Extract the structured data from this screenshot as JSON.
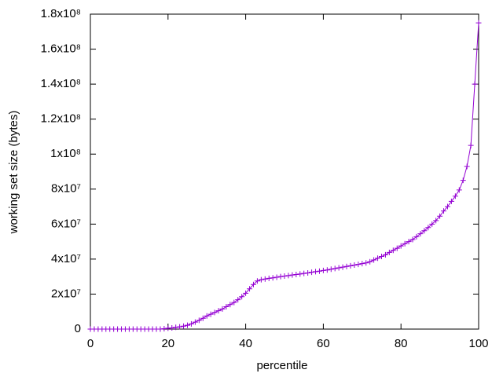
{
  "chart_data": {
    "type": "line",
    "xlabel": "percentile",
    "ylabel": "working set size (bytes)",
    "x": [
      0,
      1,
      2,
      3,
      4,
      5,
      6,
      7,
      8,
      9,
      10,
      11,
      12,
      13,
      14,
      15,
      16,
      17,
      18,
      19,
      20,
      21,
      22,
      23,
      24,
      25,
      26,
      27,
      28,
      29,
      30,
      31,
      32,
      33,
      34,
      35,
      36,
      37,
      38,
      39,
      40,
      41,
      42,
      43,
      44,
      45,
      46,
      47,
      48,
      49,
      50,
      51,
      52,
      53,
      54,
      55,
      56,
      57,
      58,
      59,
      60,
      61,
      62,
      63,
      64,
      65,
      66,
      67,
      68,
      69,
      70,
      71,
      72,
      73,
      74,
      75,
      76,
      77,
      78,
      79,
      80,
      81,
      82,
      83,
      84,
      85,
      86,
      87,
      88,
      89,
      90,
      91,
      92,
      93,
      94,
      95,
      96,
      97,
      98,
      99,
      100
    ],
    "series": [
      {
        "color": "#9400d3",
        "marker": "+",
        "values": [
          0,
          0,
          0,
          0,
          0,
          0,
          0,
          0,
          0,
          0,
          0,
          0,
          0,
          0,
          0,
          0,
          0,
          0,
          0,
          200000,
          500000,
          700000,
          1000000,
          1300000,
          1700000,
          2200000,
          3000000,
          4000000,
          5000000,
          6200000,
          7500000,
          8500000,
          9500000,
          10500000,
          11500000,
          12800000,
          14000000,
          15200000,
          16800000,
          18500000,
          20500000,
          23000000,
          25500000,
          27500000,
          28200000,
          28600000,
          29000000,
          29300000,
          29600000,
          30000000,
          30300000,
          30600000,
          30900000,
          31200000,
          31500000,
          31800000,
          32100000,
          32500000,
          32800000,
          33100000,
          33500000,
          33800000,
          34200000,
          34600000,
          35000000,
          35400000,
          35800000,
          36200000,
          36600000,
          37000000,
          37400000,
          37800000,
          38500000,
          39500000,
          40500000,
          41500000,
          42500000,
          43800000,
          45000000,
          46200000,
          47500000,
          48800000,
          50000000,
          51200000,
          52800000,
          54500000,
          56200000,
          58000000,
          60000000,
          62000000,
          64500000,
          67500000,
          70000000,
          73000000,
          76000000,
          79500000,
          85000000,
          93000000,
          105000000,
          140000000,
          175000000
        ]
      }
    ],
    "xlim": [
      0,
      100
    ],
    "xticks": [
      0,
      20,
      40,
      60,
      80,
      100
    ],
    "ylim": [
      0,
      180000000
    ],
    "yticks": [
      0,
      {
        "value": 20000000,
        "label": "2x10⁷"
      },
      {
        "value": 40000000,
        "label": "4x10⁷"
      },
      {
        "value": 60000000,
        "label": "6x10⁷"
      },
      {
        "value": 80000000,
        "label": "8x10⁷"
      },
      {
        "value": 100000000,
        "label": "1x10⁸"
      },
      {
        "value": 120000000,
        "label": "1.2x10⁸"
      },
      {
        "value": 140000000,
        "label": "1.4x10⁸"
      },
      {
        "value": 160000000,
        "label": "1.6x10⁸"
      },
      {
        "value": 180000000,
        "label": "1.8x10⁸"
      }
    ],
    "grid": false
  }
}
